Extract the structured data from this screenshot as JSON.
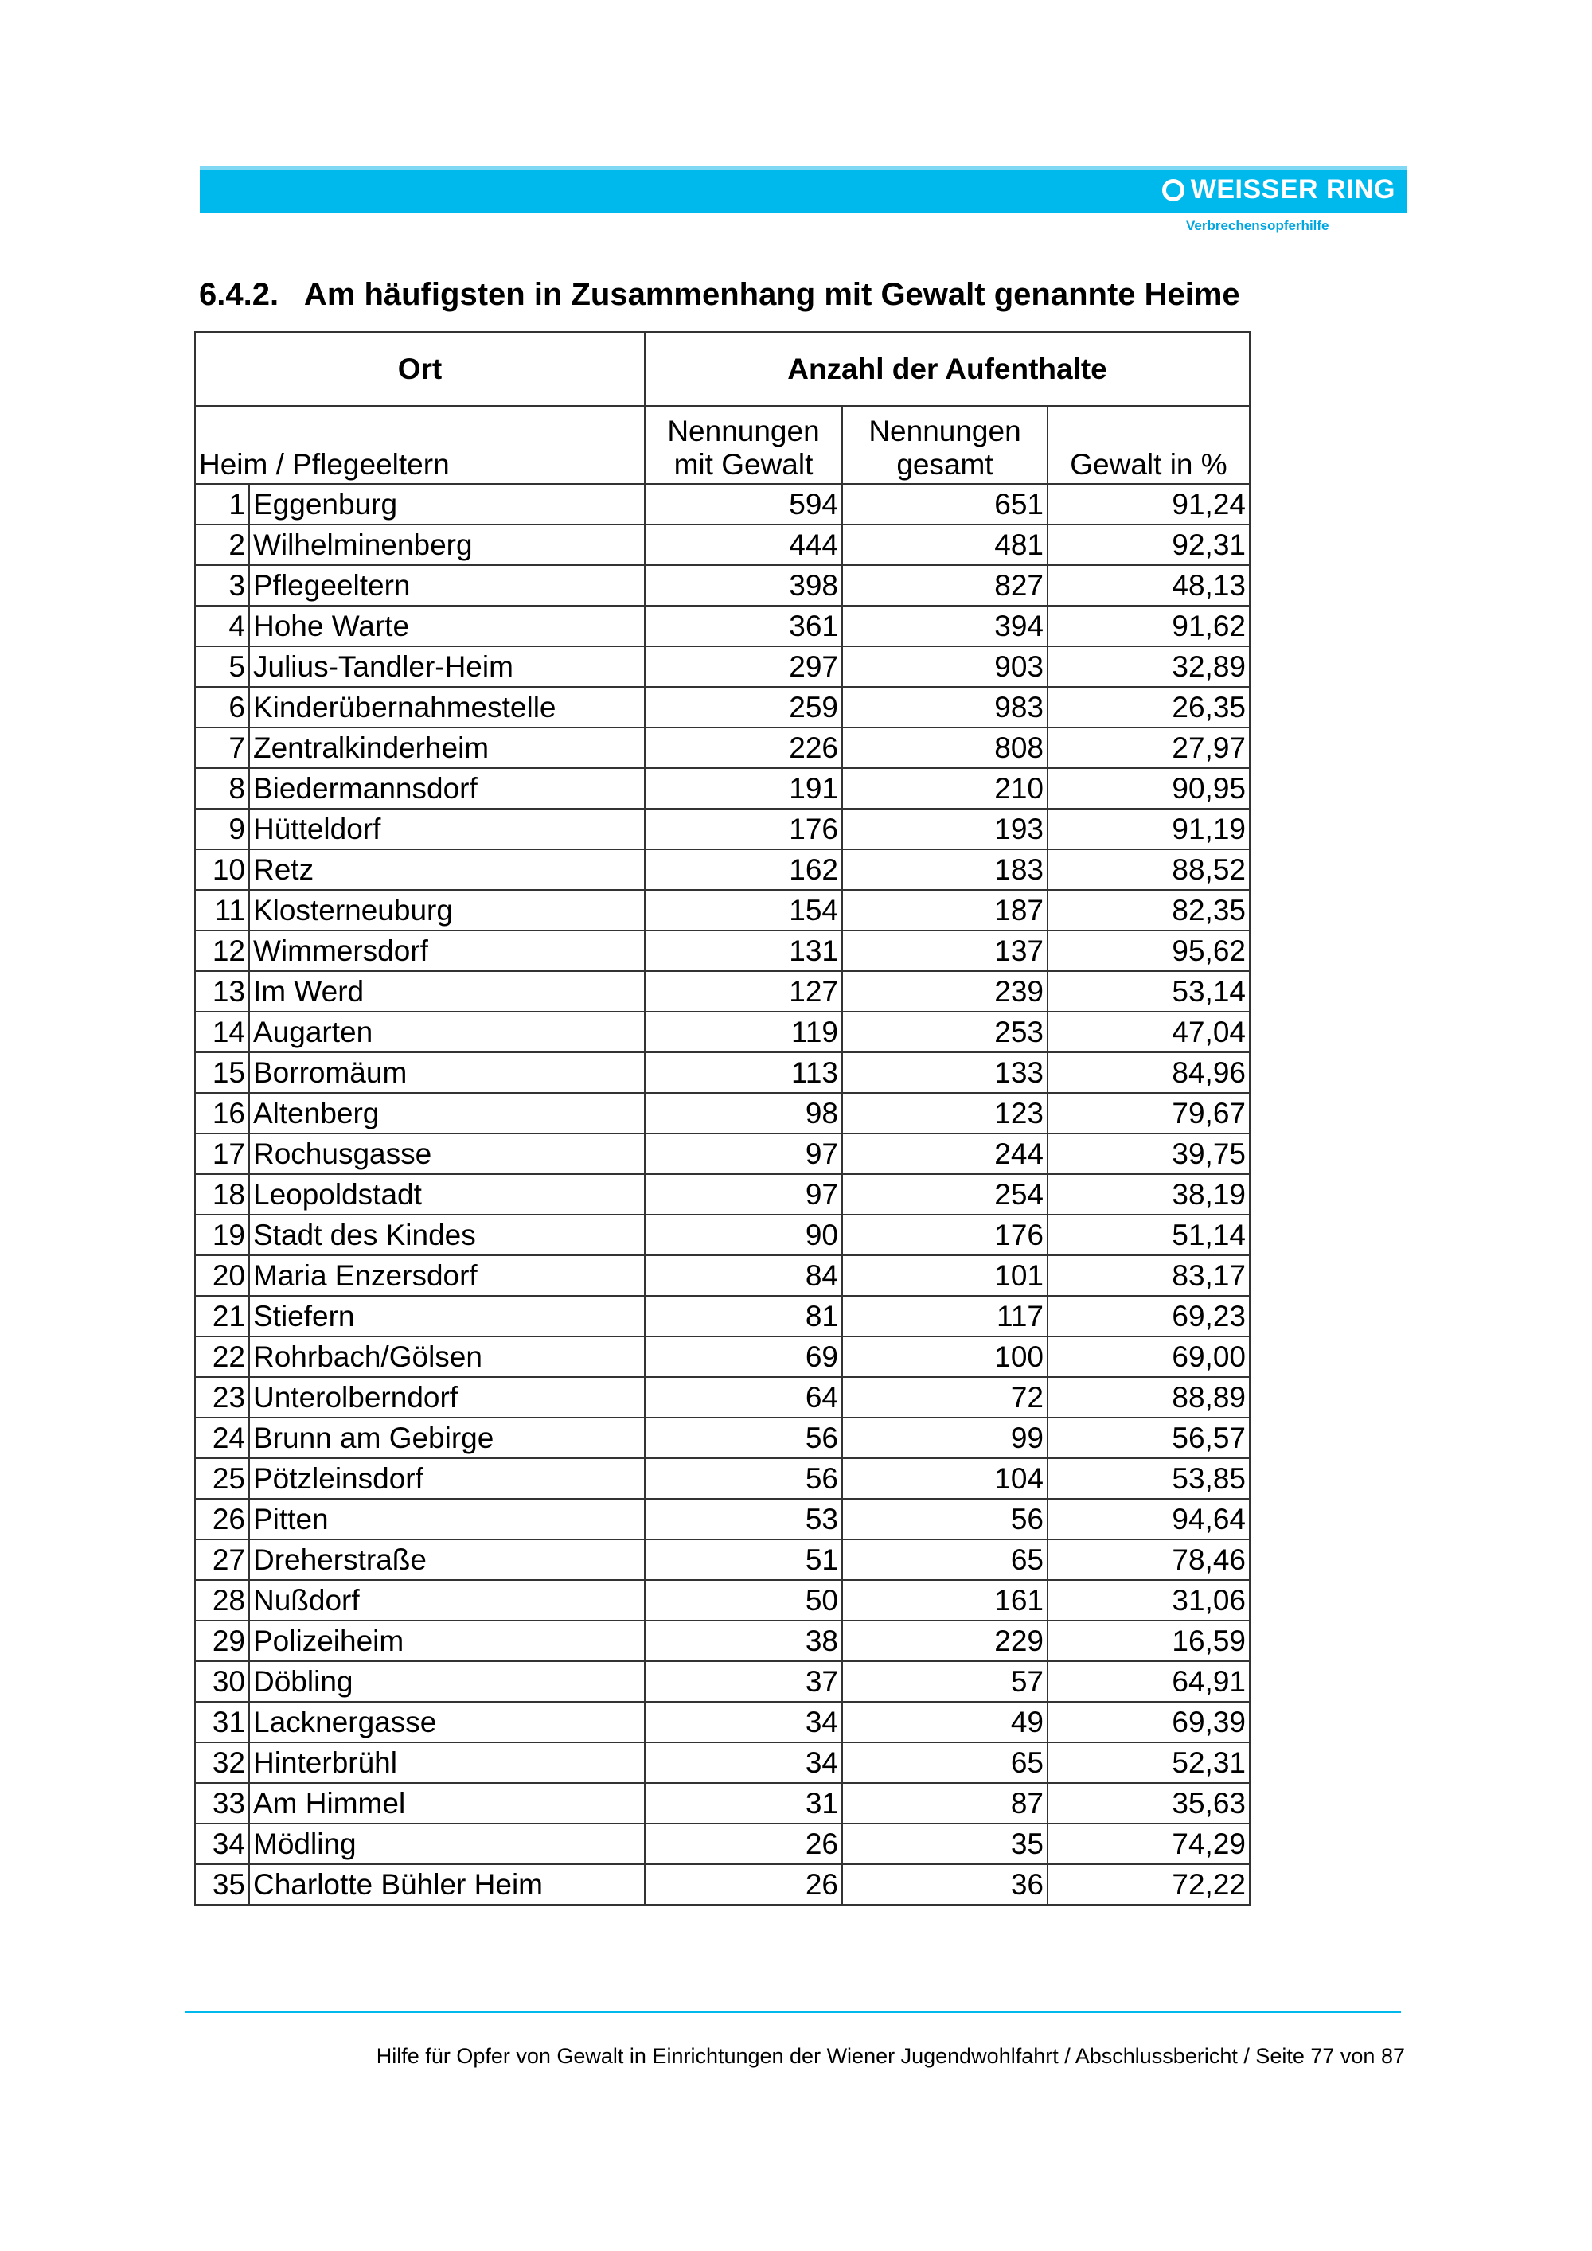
{
  "header": {
    "logo_text": "WEISSER RING",
    "tagline": "Verbrechensopferhilfe",
    "brand_color": "#00b9ec"
  },
  "title": "6.4.2.   Am häufigsten in Zusammenhang mit Gewalt genannte Heime",
  "table": {
    "group_headers": [
      "Ort",
      "Anzahl der Aufenthalte"
    ],
    "col_headers": [
      "Heim / Pflegeeltern",
      "Nennungen mit Gewalt",
      "Nennungen gesamt",
      "Gewalt in %"
    ],
    "rows": [
      [
        "1",
        "Eggenburg",
        "594",
        "651",
        "91,24"
      ],
      [
        "2",
        "Wilhelminenberg",
        "444",
        "481",
        "92,31"
      ],
      [
        "3",
        "Pflegeeltern",
        "398",
        "827",
        "48,13"
      ],
      [
        "4",
        "Hohe Warte",
        "361",
        "394",
        "91,62"
      ],
      [
        "5",
        "Julius-Tandler-Heim",
        "297",
        "903",
        "32,89"
      ],
      [
        "6",
        "Kinderübernahmestelle",
        "259",
        "983",
        "26,35"
      ],
      [
        "7",
        "Zentralkinderheim",
        "226",
        "808",
        "27,97"
      ],
      [
        "8",
        "Biedermannsdorf",
        "191",
        "210",
        "90,95"
      ],
      [
        "9",
        "Hütteldorf",
        "176",
        "193",
        "91,19"
      ],
      [
        "10",
        "Retz",
        "162",
        "183",
        "88,52"
      ],
      [
        "11",
        "Klosterneuburg",
        "154",
        "187",
        "82,35"
      ],
      [
        "12",
        "Wimmersdorf",
        "131",
        "137",
        "95,62"
      ],
      [
        "13",
        "Im Werd",
        "127",
        "239",
        "53,14"
      ],
      [
        "14",
        "Augarten",
        "119",
        "253",
        "47,04"
      ],
      [
        "15",
        "Borromäum",
        "113",
        "133",
        "84,96"
      ],
      [
        "16",
        "Altenberg",
        "98",
        "123",
        "79,67"
      ],
      [
        "17",
        "Rochusgasse",
        "97",
        "244",
        "39,75"
      ],
      [
        "18",
        "Leopoldstadt",
        "97",
        "254",
        "38,19"
      ],
      [
        "19",
        "Stadt des Kindes",
        "90",
        "176",
        "51,14"
      ],
      [
        "20",
        "Maria Enzersdorf",
        "84",
        "101",
        "83,17"
      ],
      [
        "21",
        "Stiefern",
        "81",
        "117",
        "69,23"
      ],
      [
        "22",
        "Rohrbach/Gölsen",
        "69",
        "100",
        "69,00"
      ],
      [
        "23",
        "Unterolberndorf",
        "64",
        "72",
        "88,89"
      ],
      [
        "24",
        "Brunn am Gebirge",
        "56",
        "99",
        "56,57"
      ],
      [
        "25",
        "Pötzleinsdorf",
        "56",
        "104",
        "53,85"
      ],
      [
        "26",
        "Pitten",
        "53",
        "56",
        "94,64"
      ],
      [
        "27",
        "Dreherstraße",
        "51",
        "65",
        "78,46"
      ],
      [
        "28",
        "Nußdorf",
        "50",
        "161",
        "31,06"
      ],
      [
        "29",
        "Polizeiheim",
        "38",
        "229",
        "16,59"
      ],
      [
        "30",
        "Döbling",
        "37",
        "57",
        "64,91"
      ],
      [
        "31",
        "Lacknergasse",
        "34",
        "49",
        "69,39"
      ],
      [
        "32",
        "Hinterbrühl",
        "34",
        "65",
        "52,31"
      ],
      [
        "33",
        "Am Himmel",
        "31",
        "87",
        "35,63"
      ],
      [
        "34",
        "Mödling",
        "26",
        "35",
        "74,29"
      ],
      [
        "35",
        "Charlotte Bühler Heim",
        "26",
        "36",
        "72,22"
      ]
    ]
  },
  "footer": "Hilfe für Opfer von Gewalt in Einrichtungen der Wiener Jugendwohlfahrt / Abschlussbericht / Seite 77 von 87"
}
